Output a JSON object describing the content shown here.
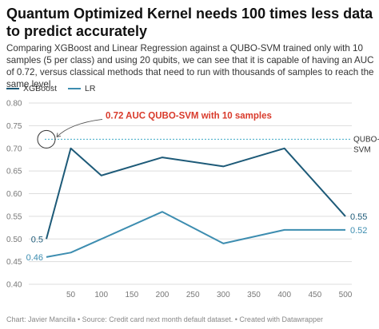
{
  "header": {
    "title": "Quantum Optimized Kernel needs 100 times less data to predict accurately",
    "description": "Comparing XGBoost and Linear Regression against a QUBO-SVM trained only with 10 samples (5 per class) and using 20 qubits, we can see that it is capable of having an AUC of 0.72, versus classical methods that need to run with thousands of samples to reach the same level."
  },
  "footer": {
    "credit": "Chart: Javier Mancilla • Source: Credit card next month default dataset. • Created with Datawrapper"
  },
  "colors": {
    "xgboost": "#1d5a78",
    "lr": "#3d8db0",
    "reference": "#3fa9c6",
    "annotation": "#d93a2b",
    "grid": "#dddddd",
    "axis_text": "#777777"
  },
  "chart_data": {
    "type": "line",
    "x": [
      10,
      50,
      100,
      200,
      300,
      400,
      500
    ],
    "x_tick_labels": [
      "50",
      "100",
      "150",
      "200",
      "250",
      "300",
      "350",
      "400",
      "450",
      "500"
    ],
    "x_ticks": [
      50,
      100,
      150,
      200,
      250,
      300,
      350,
      400,
      450,
      500
    ],
    "y_ticks": [
      "0.40",
      "0.45",
      "0.50",
      "0.55",
      "0.60",
      "0.65",
      "0.70",
      "0.75",
      "0.80"
    ],
    "ylim": [
      0.4,
      0.8
    ],
    "xlim": [
      10,
      500
    ],
    "grid": true,
    "legend_position": "top-left",
    "series": [
      {
        "name": "XGBoost",
        "values": [
          0.5,
          0.7,
          0.64,
          0.68,
          0.66,
          0.7,
          0.55
        ],
        "start_label": "0.5",
        "end_label": "0.55"
      },
      {
        "name": "LR",
        "values": [
          0.46,
          0.47,
          0.5,
          0.56,
          0.49,
          0.52,
          0.52
        ],
        "start_label": "0.46",
        "end_label": "0.52"
      }
    ],
    "reference_line": {
      "value": 0.72,
      "label": "QUBO-SVM"
    },
    "annotation": {
      "text": "0.72 AUC QUBO-SVM with 10 samples",
      "x": 10,
      "y": 0.72
    }
  }
}
